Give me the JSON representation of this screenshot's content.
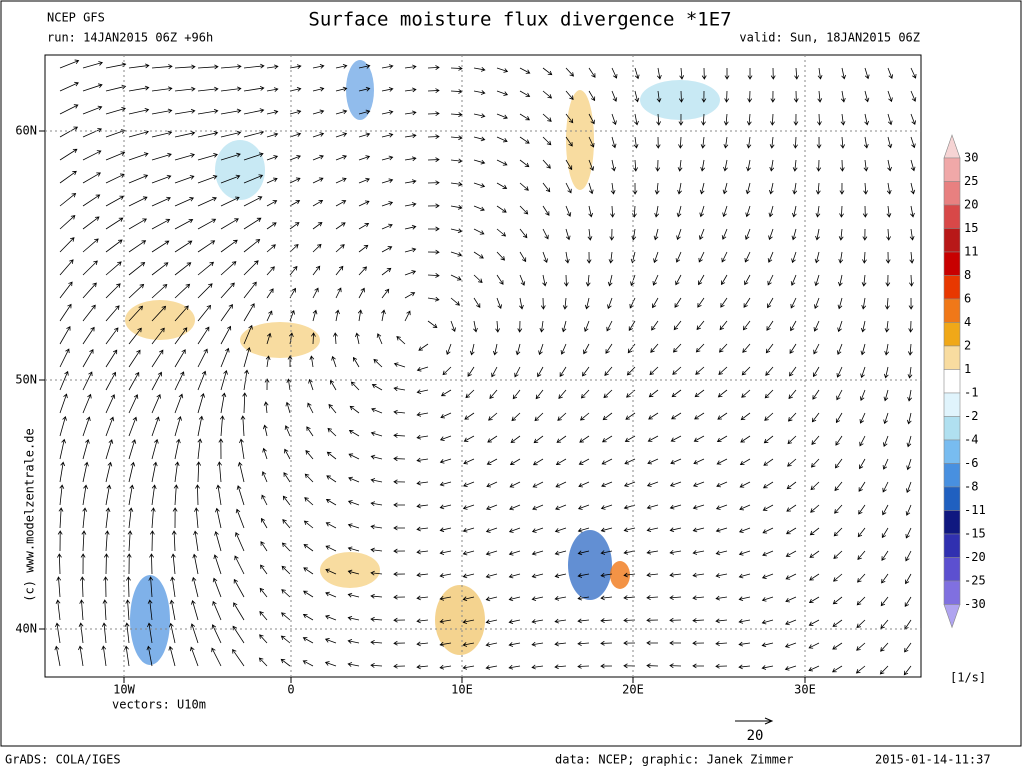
{
  "header": {
    "model": "NCEP GFS",
    "title": "Surface moisture flux divergence *1E7",
    "run": "run: 14JAN2015 06Z +96h",
    "valid": "valid: Sun, 18JAN2015 06Z"
  },
  "axes": {
    "lat_labels": [
      "60N",
      "50N",
      "40N"
    ],
    "lon_labels": [
      "10W",
      "0",
      "10E",
      "20E",
      "30E"
    ]
  },
  "colorbar": {
    "labels": [
      30,
      25,
      20,
      15,
      11,
      8,
      6,
      4,
      2,
      1,
      -1,
      -2,
      -4,
      -6,
      -8,
      -11,
      -15,
      -20,
      -25,
      -30
    ],
    "colors": [
      "#f6d4d4",
      "#f0a8a8",
      "#e88080",
      "#d84848",
      "#b81818",
      "#c80000",
      "#e83800",
      "#f07818",
      "#f0a818",
      "#f8dca0",
      "#ffffff",
      "#e0f4fc",
      "#b0e0f0",
      "#78bcf0",
      "#4890e0",
      "#2060c0",
      "#101880",
      "#3030b0",
      "#5c50d0",
      "#8070e0",
      "#b0a4f0"
    ],
    "unit": "[1/s]"
  },
  "footer": {
    "vectors": "vectors: U10m",
    "vector_scale": "20",
    "software": "GrADS: COLA/IGES",
    "credit": "data: NCEP; graphic: Janek Zimmer",
    "timestamp": "2015-01-14-11:37",
    "copyright": "(c) www.modelzentrale.de"
  }
}
